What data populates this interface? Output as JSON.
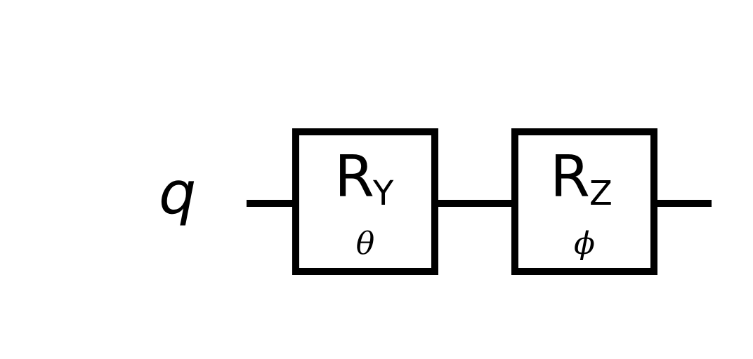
{
  "qubit": {
    "label": "q"
  },
  "gates": [
    {
      "main": "R",
      "sub": "Y",
      "param": "θ"
    },
    {
      "main": "R",
      "sub": "Z",
      "param": "ϕ"
    }
  ],
  "colors": {
    "stroke": "#000000",
    "background": "#ffffff"
  }
}
